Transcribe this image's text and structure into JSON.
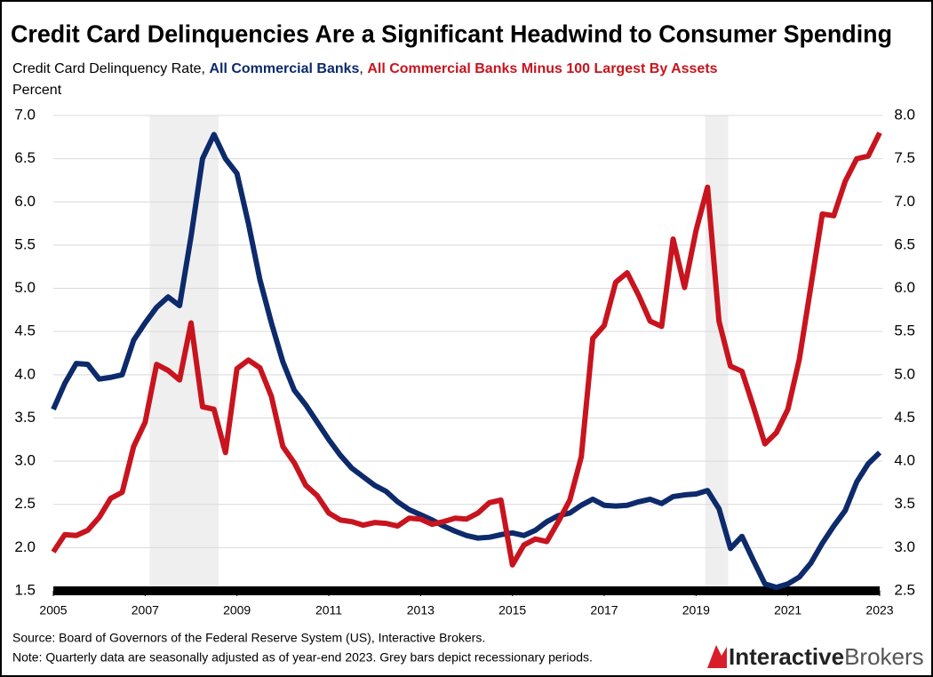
{
  "chart_data": {
    "type": "line",
    "title": "Credit Card Delinquencies Are a Significant Headwind to Consumer Spending",
    "subtitle": "Credit Card Delinquency Rate,",
    "separator": ",",
    "y_label": "Percent",
    "source": "Source: Board of Governors of the Federal Reserve System (US), Interactive Brokers.",
    "note": "Note: Quarterly data are seasonally adjusted as of year-end 2023. Grey bars depict recessionary periods.",
    "logo": [
      "Interactive",
      "Brokers"
    ],
    "x": [
      2005,
      2005.25,
      2005.5,
      2005.75,
      2006,
      2006.25,
      2006.5,
      2006.75,
      2007,
      2007.25,
      2007.5,
      2007.75,
      2008,
      2008.25,
      2008.5,
      2008.75,
      2009,
      2009.25,
      2009.5,
      2009.75,
      2010,
      2010.25,
      2010.5,
      2010.75,
      2011,
      2011.25,
      2011.5,
      2011.75,
      2012,
      2012.25,
      2012.5,
      2012.75,
      2013,
      2013.25,
      2013.5,
      2013.75,
      2014,
      2014.25,
      2014.5,
      2014.75,
      2015,
      2015.25,
      2015.5,
      2015.75,
      2016,
      2016.25,
      2016.5,
      2016.75,
      2017,
      2017.25,
      2017.5,
      2017.75,
      2018,
      2018.25,
      2018.5,
      2018.75,
      2019,
      2019.25,
      2019.5,
      2019.75,
      2020,
      2020.25,
      2020.5,
      2020.75,
      2021,
      2021.25,
      2021.5,
      2021.75,
      2022,
      2022.25,
      2022.5,
      2022.75,
      2023
    ],
    "series": [
      {
        "name": "All Commercial Banks",
        "color": "#0d2a6b",
        "axis": "y",
        "values": [
          3.6,
          3.9,
          4.13,
          4.12,
          3.95,
          3.97,
          4.0,
          4.4,
          4.6,
          4.78,
          4.9,
          4.8,
          5.6,
          6.5,
          6.78,
          6.5,
          6.33,
          5.75,
          5.1,
          4.6,
          4.15,
          3.82,
          3.65,
          3.45,
          3.25,
          3.07,
          2.92,
          2.82,
          2.72,
          2.65,
          2.53,
          2.44,
          2.38,
          2.32,
          2.25,
          2.19,
          2.14,
          2.11,
          2.12,
          2.15,
          2.17,
          2.14,
          2.2,
          2.3,
          2.37,
          2.4,
          2.49,
          2.56,
          2.49,
          2.48,
          2.49,
          2.53,
          2.56,
          2.51,
          2.59,
          2.61,
          2.62,
          2.66,
          2.45,
          1.99,
          2.13,
          1.85,
          1.58,
          1.54,
          1.58,
          1.66,
          1.82,
          2.05,
          2.25,
          2.43,
          2.76,
          2.97,
          3.1
        ]
      },
      {
        "name": "All Commercial Banks Minus 100 Largest By Assets",
        "color": "#c8141e",
        "axis": "y2",
        "values": [
          2.95,
          3.15,
          3.14,
          3.2,
          3.35,
          3.57,
          3.64,
          4.17,
          4.45,
          5.12,
          5.05,
          4.94,
          5.6,
          4.63,
          4.6,
          4.1,
          5.07,
          5.17,
          5.08,
          4.75,
          4.17,
          3.98,
          3.72,
          3.6,
          3.4,
          3.32,
          3.3,
          3.26,
          3.29,
          3.28,
          3.25,
          3.34,
          3.33,
          3.27,
          3.3,
          3.34,
          3.33,
          3.4,
          3.52,
          3.55,
          2.8,
          3.03,
          3.1,
          3.07,
          3.3,
          3.55,
          4.05,
          5.42,
          5.57,
          6.07,
          6.18,
          5.92,
          5.62,
          5.56,
          6.57,
          6.01,
          6.67,
          7.17,
          5.62,
          5.1,
          5.04,
          4.63,
          4.2,
          4.33,
          4.6,
          5.18,
          6.02,
          6.86,
          6.84,
          7.24,
          7.5,
          7.53,
          7.8
        ]
      }
    ],
    "recessions": [
      [
        2007.1,
        2008.6
      ],
      [
        2019.2,
        2019.7
      ]
    ],
    "recession_color": "#efefef",
    "xlim": [
      2005,
      2023
    ],
    "xticks": [
      2005,
      2007,
      2009,
      2011,
      2013,
      2015,
      2017,
      2019,
      2021,
      2023
    ],
    "ylim": [
      1.5,
      7.0
    ],
    "yticks": [
      {
        "value": 1.5,
        "label": "1.5"
      },
      {
        "value": 2,
        "label": "2.0"
      },
      {
        "value": 2.5,
        "label": "2.5"
      },
      {
        "value": 3,
        "label": "3.0"
      },
      {
        "value": 3.5,
        "label": "3.5"
      },
      {
        "value": 4,
        "label": "4.0"
      },
      {
        "value": 4.5,
        "label": "4.5"
      },
      {
        "value": 5,
        "label": "5.0"
      },
      {
        "value": 5.5,
        "label": "5.5"
      },
      {
        "value": 6,
        "label": "6.0"
      },
      {
        "value": 6.5,
        "label": "6.5"
      },
      {
        "value": 7,
        "label": "7.0"
      }
    ],
    "y2lim": [
      2.5,
      8.0
    ],
    "y2ticks": [
      {
        "value": 2.5,
        "label": "2.5"
      },
      {
        "value": 3,
        "label": "3.0"
      },
      {
        "value": 3.5,
        "label": "3.5"
      },
      {
        "value": 4,
        "label": "4.0"
      },
      {
        "value": 4.5,
        "label": "4.5"
      },
      {
        "value": 5,
        "label": "5.0"
      },
      {
        "value": 5.5,
        "label": "5.5"
      },
      {
        "value": 6,
        "label": "6.0"
      },
      {
        "value": 6.5,
        "label": "6.5"
      },
      {
        "value": 7,
        "label": "7.0"
      },
      {
        "value": 7.5,
        "label": "7.5"
      },
      {
        "value": 8,
        "label": "8.0"
      }
    ],
    "grid": true
  }
}
